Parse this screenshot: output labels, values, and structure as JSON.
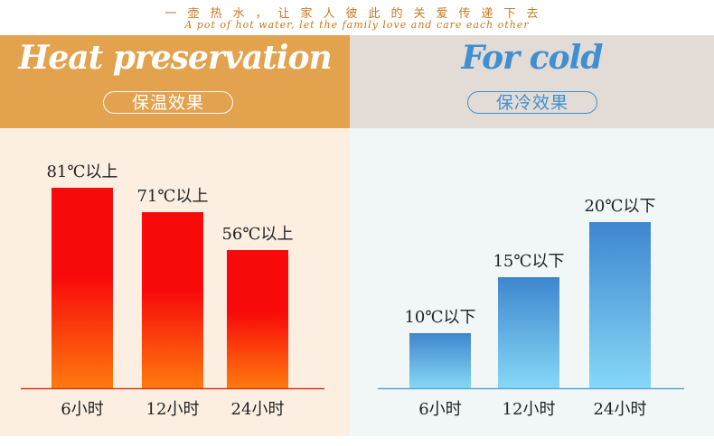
{
  "header": {
    "slogan_cn": "一壶热水，让家人彼此的关爱传递下去",
    "slogan_en": "A pot of hot water, let the family love and care each other"
  },
  "warm_section": {
    "title": "Heat preservation",
    "subtitle": "保温效果"
  },
  "cold_section": {
    "title": "For cold",
    "subtitle": "保冷效果"
  },
  "colors": {
    "warm_header_bg": "#e2a24e",
    "cold_header_bg": "#e3dcd6",
    "warm_panel_bg": "#fcefe2",
    "cold_panel_bg": "#f1f6f6",
    "warm_bar_top": "#f80a0a",
    "warm_bar_bottom": "#ff7a0e",
    "cold_bar_top": "#3f86cf",
    "cold_bar_bottom": "#86d8f6",
    "warm_axis": "#d23a1a",
    "cold_axis": "#5aa6d6"
  },
  "chart_data": [
    {
      "type": "bar",
      "title": "Heat preservation",
      "subtitle": "保温效果",
      "categories": [
        "6小时",
        "12小时",
        "24小时"
      ],
      "values": [
        81,
        71,
        56
      ],
      "value_labels": [
        "81℃以上",
        "71℃以上",
        "56℃以上"
      ],
      "ylim": [
        0,
        100
      ]
    },
    {
      "type": "bar",
      "title": "For cold",
      "subtitle": "保冷效果",
      "categories": [
        "6小时",
        "12小时",
        "24小时"
      ],
      "values": [
        10,
        15,
        20
      ],
      "value_labels": [
        "10℃以下",
        "15℃以下",
        "20℃以下"
      ],
      "ylim": [
        0,
        20
      ]
    }
  ]
}
